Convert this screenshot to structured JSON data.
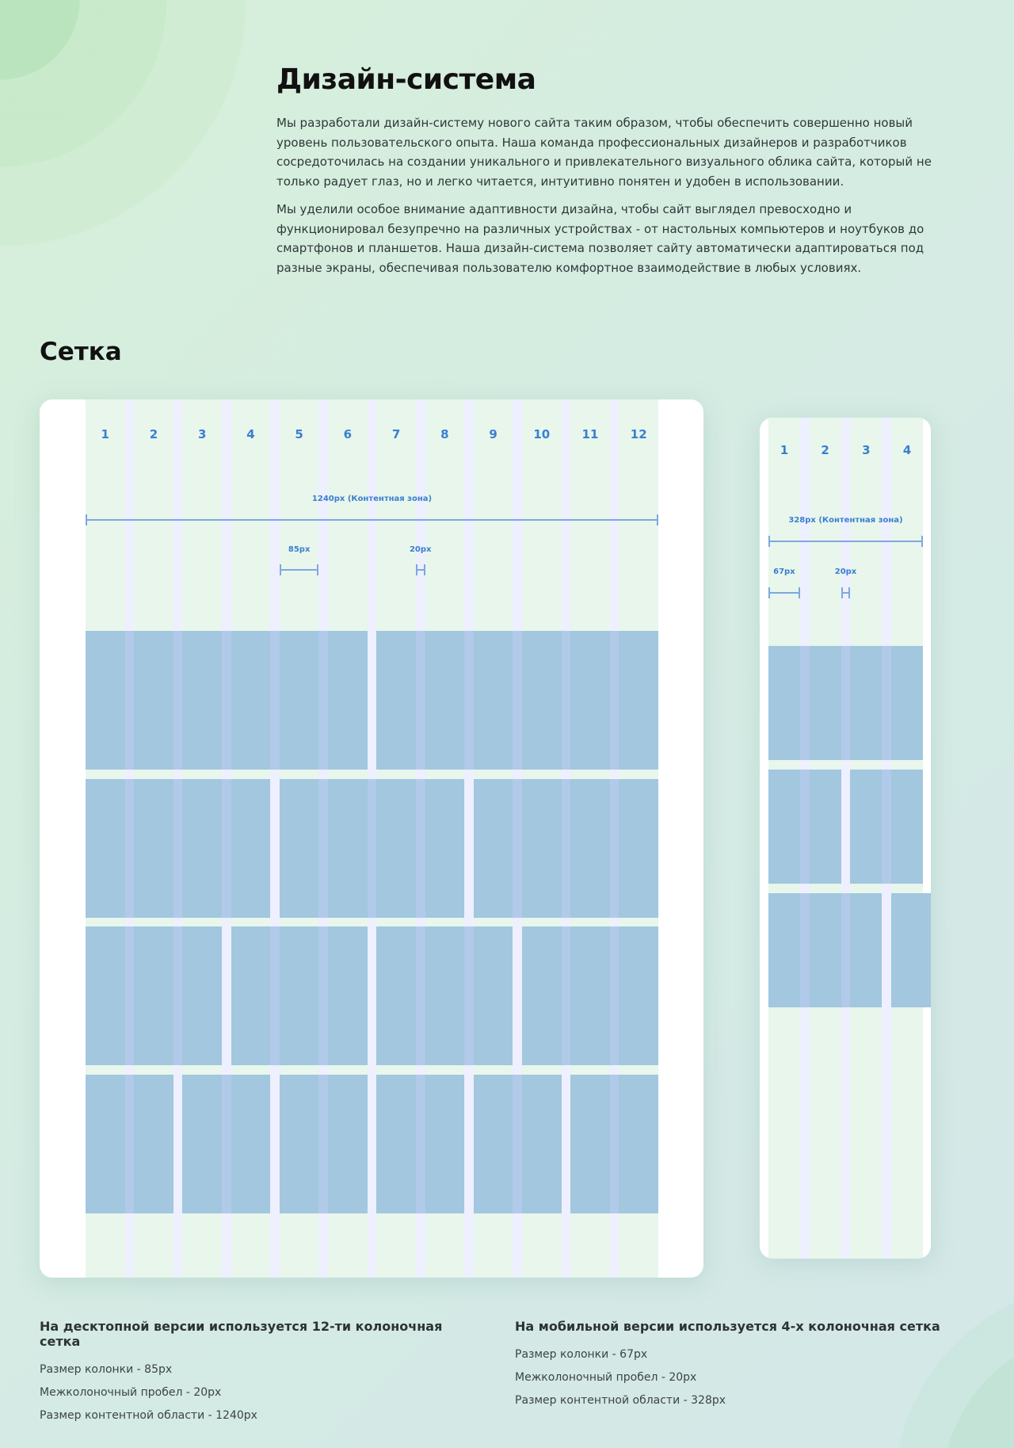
{
  "header": {
    "title": "Дизайн-система",
    "paragraphs": [
      "Мы разработали дизайн-систему нового сайта таким образом, чтобы обеспечить совершенно новый уровень пользовательского опыта. Наша команда профессиональных дизайнеров и разработчиков сосредоточилась на создании уникального и привлекательного визуального облика сайта, который не только радует глаз, но и легко читается, интуитивно понятен и удобен в использовании.",
      "Мы уделили особое внимание адаптивности дизайна, чтобы сайт выглядел превосходно и функционировал безупречно на различных устройствах - от настольных компьютеров и ноутбуков до смартфонов и планшетов. Наша дизайн-система позволяет сайту автоматически адаптироваться под разные экраны, обеспечивая пользователю комфортное взаимодействие в любых условиях."
    ]
  },
  "grid": {
    "title": "Сетка",
    "desktop": {
      "columns": 12,
      "column_labels": [
        "1",
        "2",
        "3",
        "4",
        "5",
        "6",
        "7",
        "8",
        "9",
        "10",
        "11",
        "12"
      ],
      "content_label": "1240px (Контентная зона)",
      "column_label": "85px",
      "gutter_label": "20px",
      "rows": [
        [
          6,
          6
        ],
        [
          4,
          4,
          4
        ],
        [
          3,
          3,
          3,
          3
        ],
        [
          2,
          2,
          2,
          2,
          2,
          2
        ]
      ]
    },
    "mobile": {
      "columns": 4,
      "column_labels": [
        "1",
        "2",
        "3",
        "4"
      ],
      "content_label": "328px (Контентная зона)",
      "column_label": "67px",
      "gutter_label": "20px",
      "rows": [
        [
          4
        ],
        [
          2,
          2
        ],
        [
          3,
          1
        ]
      ]
    }
  },
  "descriptions": {
    "desktop": {
      "heading": "На десктопной версии используется 12-ти колоночная сетка",
      "items": [
        "Размер колонки - 85px",
        "Межколоночный пробел - 20px",
        "Размер контентной области - 1240px"
      ]
    },
    "mobile": {
      "heading": "На мобильной версии используется 4-х колоночная сетка",
      "items": [
        "Размер колонки - 67px",
        "Межколоночный пробел - 20px",
        "Размер контентной области - 328px"
      ]
    }
  },
  "colors": {
    "column": "#e8f6ec",
    "block": "#a2c7de",
    "accent": "#3a7fd0"
  }
}
